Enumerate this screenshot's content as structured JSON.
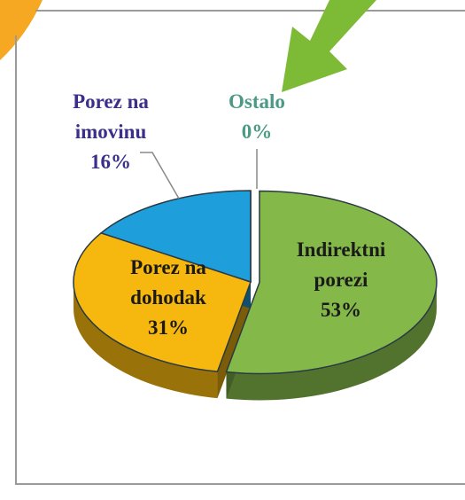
{
  "chart_data": {
    "type": "pie",
    "categories": [
      "Indirektni porezi",
      "Porez na dohodak",
      "Porez na imovinu",
      "Ostalo"
    ],
    "values": [
      53,
      31,
      16,
      0
    ],
    "value_labels": [
      "53%",
      "31%",
      "16%",
      "0%"
    ],
    "colors": [
      "#84b94a",
      "#f6b80f",
      "#1e9fdc",
      "#84b94a"
    ]
  }
}
